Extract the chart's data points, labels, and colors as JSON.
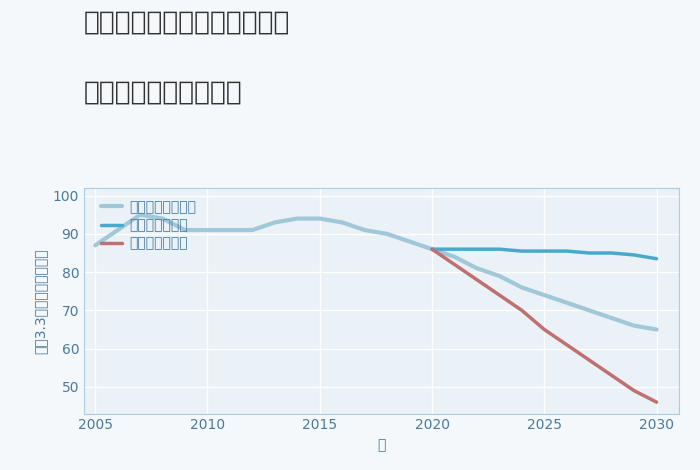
{
  "title_line1": "兵庫県姫路市香寺町矢田部の",
  "title_line2": "中古戸建ての価格推移",
  "xlabel": "年",
  "ylabel": "坪（3.3㎡）単価（万円）",
  "ylim": [
    43,
    102
  ],
  "yticks": [
    50,
    60,
    70,
    80,
    90,
    100
  ],
  "xlim": [
    2004.5,
    2031
  ],
  "xticks": [
    2005,
    2010,
    2015,
    2020,
    2025,
    2030
  ],
  "fig_background": "#f4f8fb",
  "plot_background": "#eaf1f7",
  "grid_color": "#ffffff",
  "good_scenario": {
    "x": [
      2020,
      2021,
      2022,
      2023,
      2024,
      2025,
      2026,
      2027,
      2028,
      2029,
      2030
    ],
    "y": [
      86,
      86,
      86,
      86,
      85.5,
      85.5,
      85.5,
      85,
      85,
      84.5,
      83.5
    ],
    "color": "#4aa8cc",
    "linewidth": 2.5,
    "label": "グッドシナリオ"
  },
  "bad_scenario": {
    "x": [
      2020,
      2021,
      2022,
      2023,
      2024,
      2025,
      2026,
      2027,
      2028,
      2029,
      2030
    ],
    "y": [
      86,
      82,
      78,
      74,
      70,
      65,
      61,
      57,
      53,
      49,
      46
    ],
    "color": "#c07070",
    "linewidth": 2.5,
    "label": "バッドシナリオ"
  },
  "normal_scenario": {
    "x": [
      2005,
      2006,
      2007,
      2008,
      2009,
      2010,
      2011,
      2012,
      2013,
      2014,
      2015,
      2016,
      2017,
      2018,
      2019,
      2020,
      2021,
      2022,
      2023,
      2024,
      2025,
      2026,
      2027,
      2028,
      2029,
      2030
    ],
    "y": [
      87,
      91,
      95,
      94,
      91,
      91,
      91,
      91,
      93,
      94,
      94,
      93,
      91,
      90,
      88,
      86,
      84,
      81,
      79,
      76,
      74,
      72,
      70,
      68,
      66,
      65
    ],
    "color": "#a0c8d8",
    "linewidth": 3.0,
    "label": "ノーマルシナリオ"
  },
  "title_fontsize": 19,
  "axis_label_fontsize": 10,
  "tick_fontsize": 10,
  "legend_fontsize": 10
}
